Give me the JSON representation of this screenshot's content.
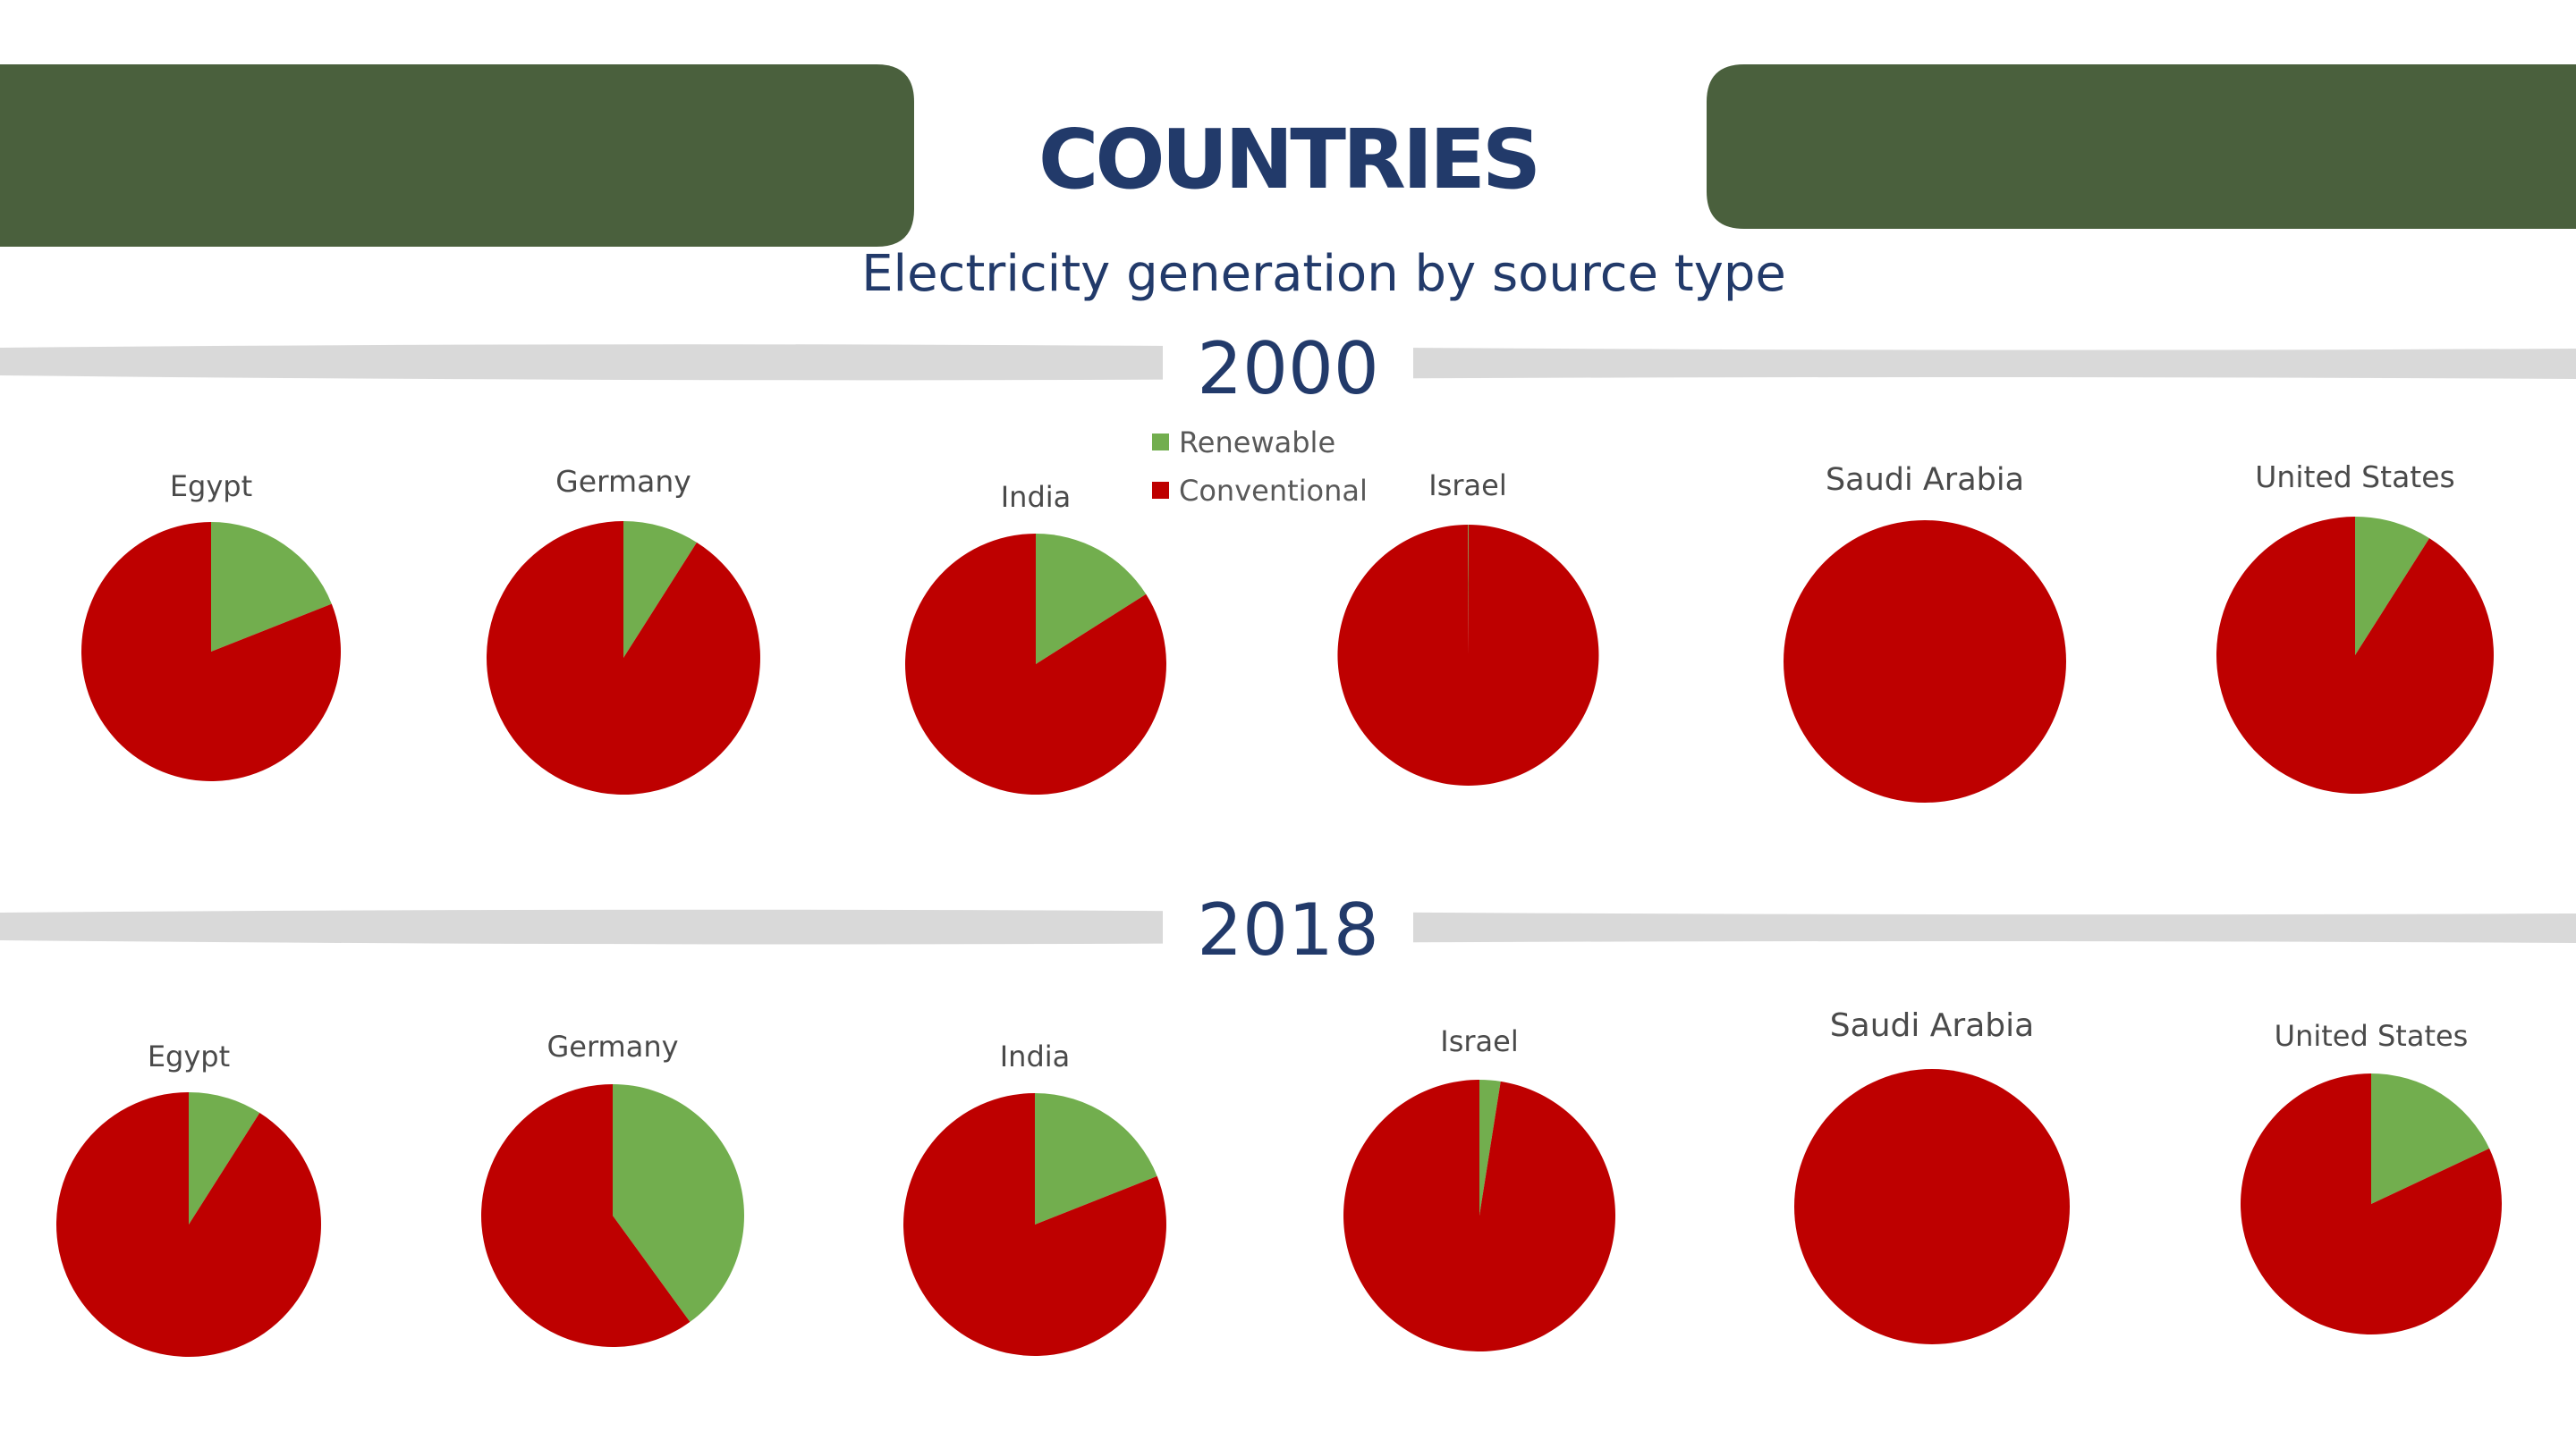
{
  "header": {
    "title": "COUNTRIES",
    "subtitle": "Electricity generation by source type"
  },
  "colors": {
    "banner_green": "#4A603D",
    "title_navy": "#223A6A",
    "renewable": "#72AE4E",
    "conventional": "#BE0000",
    "divider_gray": "#D9D9D9",
    "label_gray": "#4A4A4A"
  },
  "legend": {
    "items": [
      {
        "label": "Renewable",
        "color": "#72AE4E"
      },
      {
        "label": "Conventional",
        "color": "#BE0000"
      }
    ]
  },
  "chart_data": [
    {
      "type": "pie",
      "title": "2000",
      "categories": [
        "Renewable",
        "Conventional"
      ],
      "charts": [
        {
          "country": "Egypt",
          "values": [
            19,
            81
          ]
        },
        {
          "country": "Germany",
          "values": [
            9,
            91
          ]
        },
        {
          "country": "India",
          "values": [
            16,
            84
          ]
        },
        {
          "country": "Israel",
          "values": [
            0.1,
            99.9
          ]
        },
        {
          "country": "Saudi Arabia",
          "values": [
            0,
            100
          ]
        },
        {
          "country": "United States",
          "values": [
            9,
            91
          ]
        }
      ]
    },
    {
      "type": "pie",
      "title": "2018",
      "categories": [
        "Renewable",
        "Conventional"
      ],
      "charts": [
        {
          "country": "Egypt",
          "values": [
            9,
            91
          ]
        },
        {
          "country": "Germany",
          "values": [
            40,
            60
          ]
        },
        {
          "country": "India",
          "values": [
            19,
            81
          ]
        },
        {
          "country": "Israel",
          "values": [
            2.5,
            97.5
          ]
        },
        {
          "country": "Saudi Arabia",
          "values": [
            0,
            100
          ]
        },
        {
          "country": "United States",
          "values": [
            18,
            82
          ]
        }
      ]
    }
  ]
}
